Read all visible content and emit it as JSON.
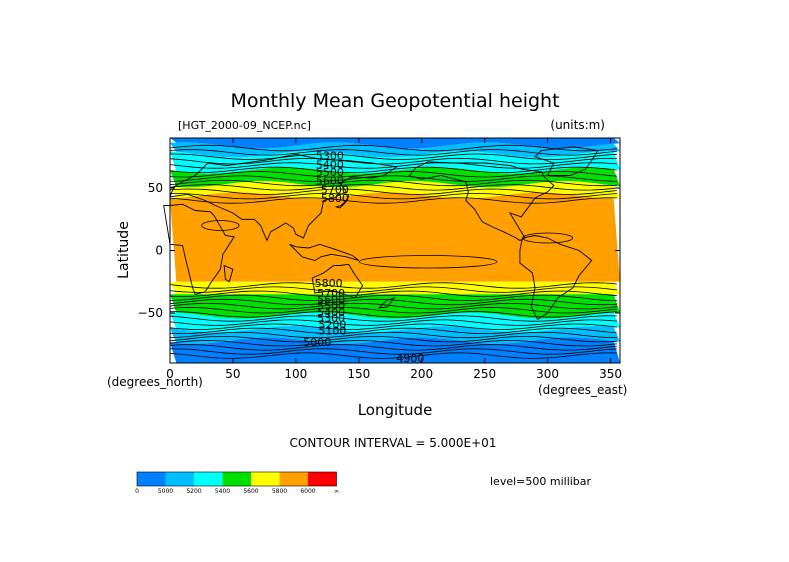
{
  "chart_data": {
    "type": "heatmap",
    "title": "Monthly Mean Geopotential height",
    "source_label": "[HGT_2000-09_NCEP.nc]",
    "units_label": "(units:m)",
    "xlabel": "Longitude",
    "ylabel": "Latitude",
    "x_units": "(degrees_east)",
    "y_units": "(degrees_north)",
    "xlim": [
      0,
      357.5
    ],
    "ylim": [
      -90,
      90
    ],
    "x_ticks": [
      "0",
      "50",
      "100",
      "150",
      "200",
      "250",
      "300",
      "350"
    ],
    "x_tick_values": [
      0,
      50,
      100,
      150,
      200,
      250,
      300,
      350
    ],
    "y_ticks": [
      "50",
      "0",
      "−50"
    ],
    "y_tick_values": [
      50,
      0,
      -50
    ],
    "contour_interval_label": "CONTOUR INTERVAL = 5.000E+01",
    "level_label": "level=500 millibar",
    "contour_labels": [
      {
        "text": "5300",
        "lon": 127,
        "lat": 76
      },
      {
        "text": "5400",
        "lon": 127,
        "lat": 69
      },
      {
        "text": "5500",
        "lon": 127,
        "lat": 63
      },
      {
        "text": "5600",
        "lon": 127,
        "lat": 56
      },
      {
        "text": "5700",
        "lon": 131,
        "lat": 49
      },
      {
        "text": "5800",
        "lon": 131,
        "lat": 42
      },
      {
        "text": "5800",
        "lon": 126,
        "lat": -26
      },
      {
        "text": "5700",
        "lon": 128,
        "lat": -34
      },
      {
        "text": "5600",
        "lon": 128,
        "lat": -39
      },
      {
        "text": "5500",
        "lon": 128,
        "lat": -44
      },
      {
        "text": "5400",
        "lon": 128,
        "lat": -49
      },
      {
        "text": "5300",
        "lon": 128,
        "lat": -54
      },
      {
        "text": "5200",
        "lon": 129,
        "lat": -59
      },
      {
        "text": "5100",
        "lon": 129,
        "lat": -64
      },
      {
        "text": "5000",
        "lon": 117,
        "lat": -73
      },
      {
        "text": "4900",
        "lon": 191,
        "lat": -86
      }
    ],
    "bands": [
      {
        "lat": [
          90,
          84
        ],
        "color": "#0080ff"
      },
      {
        "lat": [
          84,
          77
        ],
        "color": "#00bfff"
      },
      {
        "lat": [
          77,
          64
        ],
        "color": "#00ffff"
      },
      {
        "lat": [
          64,
          53
        ],
        "color": "#00e000"
      },
      {
        "lat": [
          53,
          44
        ],
        "color": "#ffff00"
      },
      {
        "lat": [
          44,
          -25
        ],
        "color": "#ffa000"
      },
      {
        "lat": [
          -25,
          -35
        ],
        "color": "#ffff00"
      },
      {
        "lat": [
          -35,
          -52
        ],
        "color": "#00e000"
      },
      {
        "lat": [
          -52,
          -63
        ],
        "color": "#00ffff"
      },
      {
        "lat": [
          -63,
          -72
        ],
        "color": "#00bfff"
      },
      {
        "lat": [
          -72,
          -90
        ],
        "color": "#0080ff"
      }
    ],
    "colorbar": {
      "colors": [
        "#0080ff",
        "#00bfff",
        "#00ffff",
        "#00e000",
        "#ffff00",
        "#ffa000",
        "#ff0000"
      ],
      "labels": [
        "0",
        "5000",
        "5200",
        "5400",
        "5600",
        "5800",
        "6000",
        "∞"
      ]
    }
  }
}
